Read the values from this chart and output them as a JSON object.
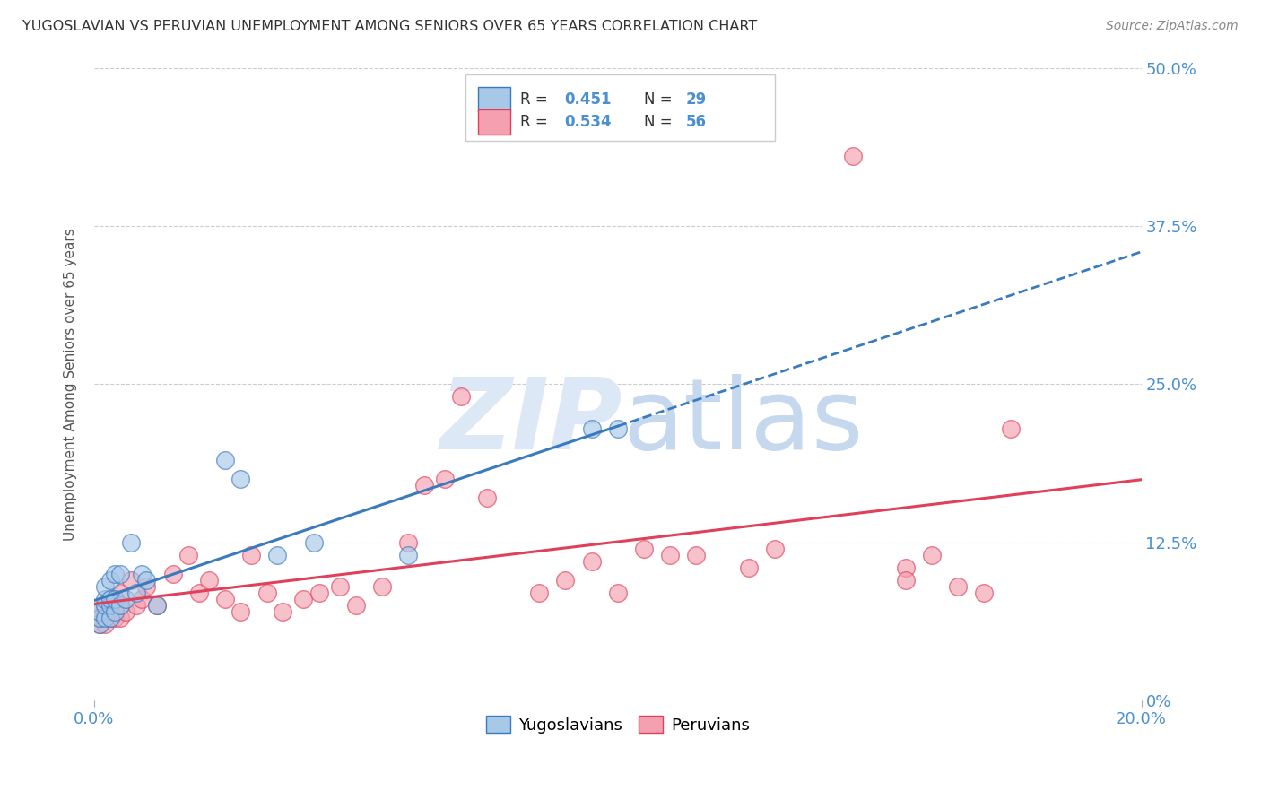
{
  "title": "YUGOSLAVIAN VS PERUVIAN UNEMPLOYMENT AMONG SENIORS OVER 65 YEARS CORRELATION CHART",
  "source": "Source: ZipAtlas.com",
  "ylabel": "Unemployment Among Seniors over 65 years",
  "blue_color": "#a8c8e8",
  "pink_color": "#f4a0b0",
  "blue_line_color": "#3a7abf",
  "pink_line_color": "#e0405a",
  "axis_label_color": "#4a90d0",
  "background_color": "#ffffff",
  "xlim": [
    0.0,
    0.2
  ],
  "ylim": [
    0.0,
    0.5
  ],
  "y_tick_values": [
    0.0,
    0.125,
    0.25,
    0.375,
    0.5
  ],
  "y_tick_labels": [
    "0%",
    "12.5%",
    "25.0%",
    "37.5%",
    "50.0%"
  ],
  "yugoslavian_x": [
    0.001,
    0.001,
    0.001,
    0.002,
    0.002,
    0.002,
    0.002,
    0.003,
    0.003,
    0.003,
    0.003,
    0.004,
    0.004,
    0.004,
    0.005,
    0.005,
    0.006,
    0.007,
    0.008,
    0.009,
    0.01,
    0.012,
    0.025,
    0.028,
    0.035,
    0.042,
    0.06,
    0.095,
    0.1
  ],
  "yugoslavian_y": [
    0.06,
    0.065,
    0.07,
    0.065,
    0.075,
    0.08,
    0.09,
    0.065,
    0.075,
    0.08,
    0.095,
    0.07,
    0.08,
    0.1,
    0.075,
    0.1,
    0.08,
    0.125,
    0.085,
    0.1,
    0.095,
    0.075,
    0.19,
    0.175,
    0.115,
    0.125,
    0.115,
    0.215,
    0.215
  ],
  "peruvian_x": [
    0.001,
    0.001,
    0.001,
    0.002,
    0.002,
    0.002,
    0.003,
    0.003,
    0.003,
    0.004,
    0.004,
    0.004,
    0.005,
    0.005,
    0.005,
    0.006,
    0.007,
    0.008,
    0.009,
    0.01,
    0.012,
    0.015,
    0.018,
    0.02,
    0.022,
    0.025,
    0.028,
    0.03,
    0.033,
    0.036,
    0.04,
    0.043,
    0.047,
    0.05,
    0.055,
    0.06,
    0.063,
    0.067,
    0.07,
    0.075,
    0.085,
    0.09,
    0.095,
    0.1,
    0.105,
    0.11,
    0.115,
    0.125,
    0.13,
    0.145,
    0.155,
    0.155,
    0.16,
    0.165,
    0.17,
    0.175
  ],
  "peruvian_y": [
    0.06,
    0.065,
    0.07,
    0.06,
    0.07,
    0.075,
    0.065,
    0.07,
    0.08,
    0.065,
    0.075,
    0.08,
    0.065,
    0.075,
    0.085,
    0.07,
    0.095,
    0.075,
    0.08,
    0.09,
    0.075,
    0.1,
    0.115,
    0.085,
    0.095,
    0.08,
    0.07,
    0.115,
    0.085,
    0.07,
    0.08,
    0.085,
    0.09,
    0.075,
    0.09,
    0.125,
    0.17,
    0.175,
    0.24,
    0.16,
    0.085,
    0.095,
    0.11,
    0.085,
    0.12,
    0.115,
    0.115,
    0.105,
    0.12,
    0.43,
    0.105,
    0.095,
    0.115,
    0.09,
    0.085,
    0.215
  ],
  "legend_blue_r": "R = 0.451",
  "legend_blue_n": "N = 29",
  "legend_pink_r": "R = 0.534",
  "legend_pink_n": "N = 56"
}
